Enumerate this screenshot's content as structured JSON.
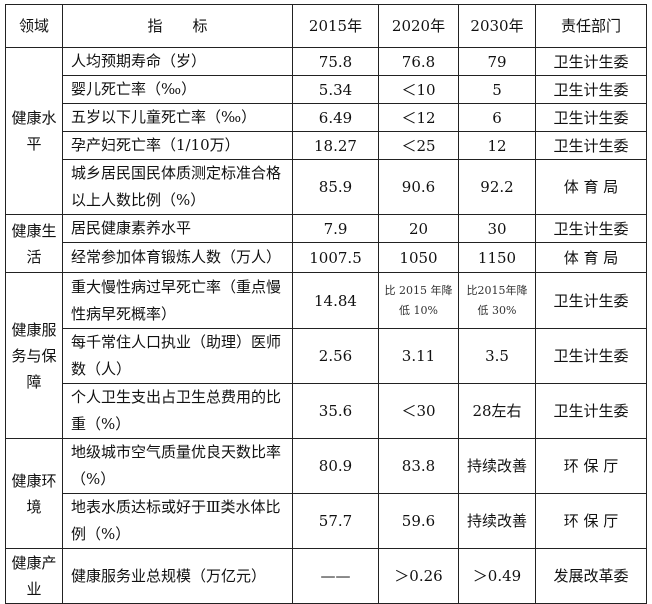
{
  "header": {
    "domain": "领域",
    "indicator": "指　　标",
    "y2015": "2015年",
    "y2020": "2020年",
    "y2030": "2030年",
    "dept": "责任部门"
  },
  "groups": [
    {
      "domain": "健康水平",
      "rows": [
        {
          "indicator": "人均预期寿命（岁）",
          "v2015": "75.8",
          "v2020": "76.8",
          "v2030": "79",
          "dept": "卫生计生委"
        },
        {
          "indicator": "婴儿死亡率（‰）",
          "v2015": "5.34",
          "v2020": "＜10",
          "v2030": "5",
          "dept": "卫生计生委"
        },
        {
          "indicator": "五岁以下儿童死亡率（‰）",
          "v2015": "6.49",
          "v2020": "＜12",
          "v2030": "6",
          "dept": "卫生计生委"
        },
        {
          "indicator": "孕产妇死亡率（1/10万）",
          "v2015": "18.27",
          "v2020": "＜25",
          "v2030": "12",
          "dept": "卫生计生委"
        },
        {
          "indicator": "城乡居民国民体质测定标准合格以上人数比例（%）",
          "v2015": "85.9",
          "v2020": "90.6",
          "v2030": "92.2",
          "dept": "体 育 局"
        }
      ]
    },
    {
      "domain": "健康生活",
      "rows": [
        {
          "indicator": "居民健康素养水平",
          "v2015": "7.9",
          "v2020": "20",
          "v2030": "30",
          "dept": "卫生计生委"
        },
        {
          "indicator": "经常参加体育锻炼人数（万人）",
          "v2015": "1007.5",
          "v2020": "1050",
          "v2030": "1150",
          "dept": "体 育 局"
        }
      ]
    },
    {
      "domain": "健康服务与保障",
      "rows": [
        {
          "indicator": "重大慢性病过早死亡率（重点慢性病早死概率）",
          "v2015": "14.84",
          "v2020": "比 2015 年降低 10%",
          "v2030": "比2015年降低 30%",
          "dept": "卫生计生委"
        },
        {
          "indicator": "每千常住人口执业（助理）医师数（人）",
          "v2015": "2.56",
          "v2020": "3.11",
          "v2030": "3.5",
          "dept": "卫生计生委"
        },
        {
          "indicator": "个人卫生支出占卫生总费用的比重（%）",
          "v2015": "35.6",
          "v2020": "＜30",
          "v2030": "28左右",
          "dept": "卫生计生委"
        }
      ]
    },
    {
      "domain": "健康环境",
      "rows": [
        {
          "indicator": "地级城市空气质量优良天数比率（%）",
          "v2015": "80.9",
          "v2020": "83.8",
          "v2030": "持续改善",
          "dept": "环 保 厅"
        },
        {
          "indicator": "地表水质达标或好于Ⅲ类水体比例（%）",
          "v2015": "57.7",
          "v2020": "59.6",
          "v2030": "持续改善",
          "dept": "环 保 厅"
        }
      ]
    },
    {
      "domain": "健康产业",
      "rows": [
        {
          "indicator": "健康服务业总规模（万亿元）",
          "v2015": "——",
          "v2020": "＞0.26",
          "v2030": "＞0.49",
          "dept": "发展改革委"
        }
      ]
    }
  ]
}
